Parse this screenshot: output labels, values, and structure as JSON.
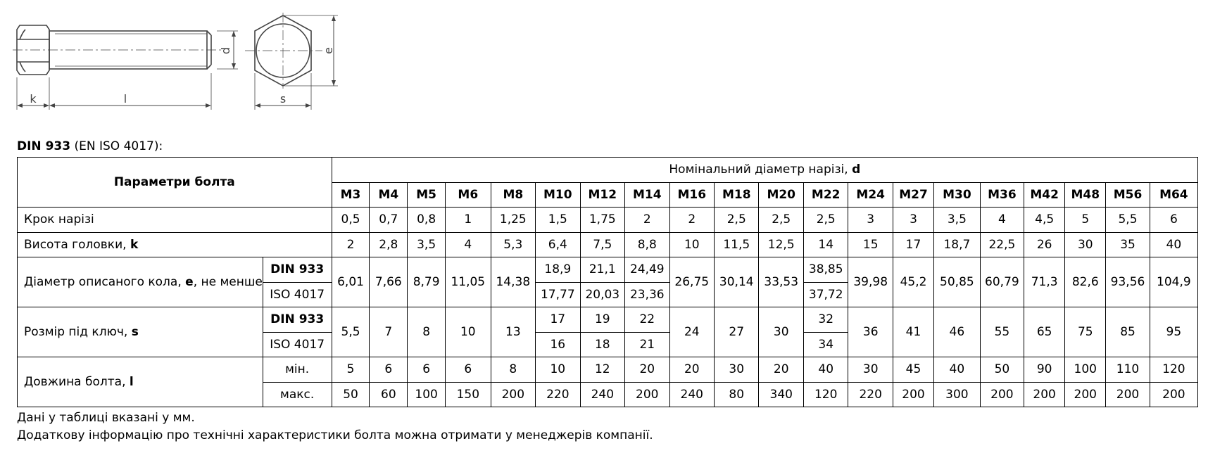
{
  "drawings": {
    "side_view": {
      "labels": {
        "k": "k",
        "l": "l",
        "d": "d"
      }
    },
    "top_view": {
      "labels": {
        "e": "e",
        "s": "s"
      }
    }
  },
  "caption": {
    "bold": "DIN 933",
    "rest": " (EN ISO 4017):"
  },
  "table": {
    "params_header": "Параметри болта",
    "nominal_header": {
      "text": "Номінальний діаметр нарізі, ",
      "bold": "d"
    },
    "sizes": [
      "M3",
      "M4",
      "M5",
      "M6",
      "M8",
      "M10",
      "M12",
      "M14",
      "M16",
      "M18",
      "M20",
      "M22",
      "M24",
      "M27",
      "M30",
      "M36",
      "M42",
      "M48",
      "M56",
      "M64"
    ],
    "pitch": {
      "label": "Крок нарізі",
      "values": [
        "0,5",
        "0,7",
        "0,8",
        "1",
        "1,25",
        "1,5",
        "1,75",
        "2",
        "2",
        "2,5",
        "2,5",
        "2,5",
        "3",
        "3",
        "3,5",
        "4",
        "4,5",
        "5",
        "5,5",
        "6"
      ]
    },
    "head_height": {
      "label": "Висота головки, ",
      "bold": "k",
      "values": [
        "2",
        "2,8",
        "3,5",
        "4",
        "5,3",
        "6,4",
        "7,5",
        "8,8",
        "10",
        "11,5",
        "12,5",
        "14",
        "15",
        "17",
        "18,7",
        "22,5",
        "26",
        "30",
        "35",
        "40"
      ]
    },
    "circle_diameter": {
      "label_a": "Діаметр описаного кола, ",
      "bold": "e",
      "label_b": ", не менше",
      "std_a": "DIN 933",
      "std_b": "ISO 4017",
      "shared": {
        "M3": "6,01",
        "M4": "7,66",
        "M5": "8,79",
        "M6": "11,05",
        "M8": "14,38",
        "M16": "26,75",
        "M18": "30,14",
        "M20": "33,53",
        "M24": "39,98",
        "M27": "45,2",
        "M30": "50,85",
        "M36": "60,79",
        "M42": "71,3",
        "M48": "82,6",
        "M56": "93,56",
        "M64": "104,9"
      },
      "din": {
        "M10": "18,9",
        "M12": "21,1",
        "M14": "24,49",
        "M22": "38,85"
      },
      "iso": {
        "M10": "17,77",
        "M12": "20,03",
        "M14": "23,36",
        "M22": "37,72"
      }
    },
    "wrench_size": {
      "label": "Розмір під ключ, ",
      "bold": "s",
      "std_a": "DIN 933",
      "std_b": "ISO 4017",
      "shared": {
        "M3": "5,5",
        "M4": "7",
        "M5": "8",
        "M6": "10",
        "M8": "13",
        "M16": "24",
        "M18": "27",
        "M20": "30",
        "M24": "36",
        "M27": "41",
        "M30": "46",
        "M36": "55",
        "M42": "65",
        "M48": "75",
        "M56": "85",
        "M64": "95"
      },
      "din": {
        "M10": "17",
        "M12": "19",
        "M14": "22",
        "M22": "32"
      },
      "iso": {
        "M10": "16",
        "M12": "18",
        "M14": "21",
        "M22": "34"
      }
    },
    "bolt_length": {
      "label": "Довжина болта, ",
      "bold": "l",
      "min_label": "мін.",
      "max_label": "макс.",
      "min": [
        "5",
        "6",
        "6",
        "6",
        "8",
        "10",
        "12",
        "20",
        "20",
        "30",
        "20",
        "40",
        "30",
        "45",
        "40",
        "50",
        "90",
        "100",
        "110",
        "120"
      ],
      "max": [
        "50",
        "60",
        "100",
        "150",
        "200",
        "220",
        "240",
        "200",
        "240",
        "80",
        "340",
        "120",
        "220",
        "200",
        "300",
        "200",
        "200",
        "200",
        "200",
        "200"
      ]
    }
  },
  "notes": [
    "Дані у таблиці вказані у мм.",
    "Додаткову інформацію про технічні характеристики болта можна отримати у менеджерів компанії."
  ]
}
